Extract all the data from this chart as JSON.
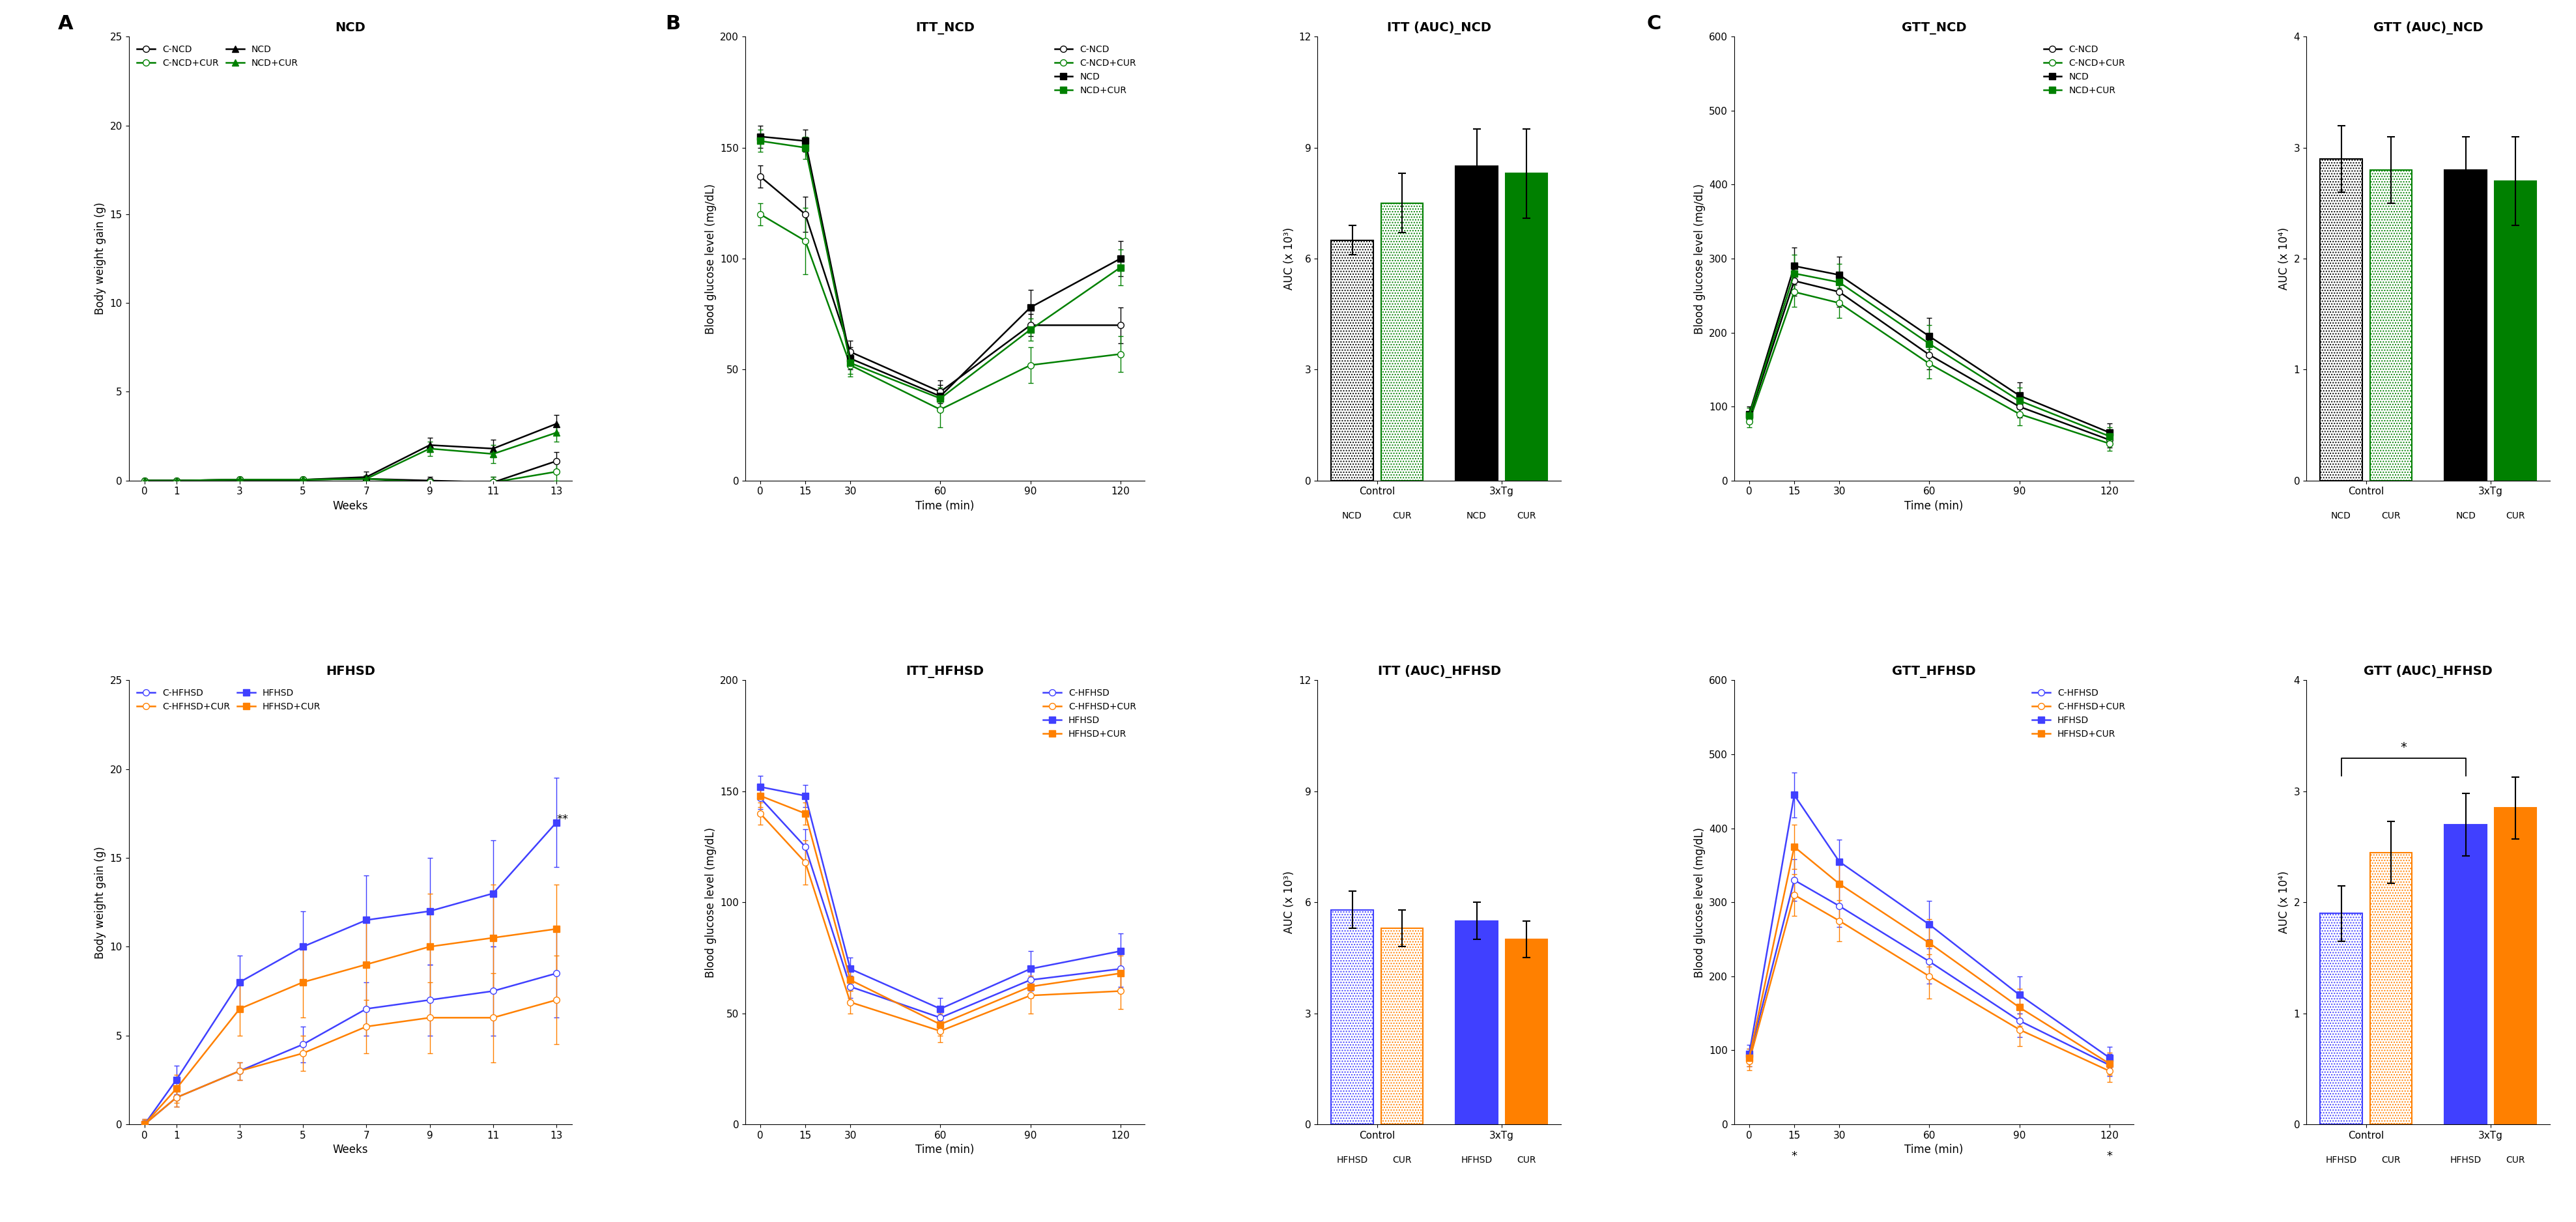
{
  "panel_A_NCD": {
    "title": "NCD",
    "xlabel": "Weeks",
    "ylabel": "Body weight gain (g)",
    "weeks": [
      0,
      1,
      3,
      5,
      7,
      9,
      11,
      13
    ],
    "ylim": [
      0,
      25
    ],
    "yticks": [
      0,
      5,
      10,
      15,
      20,
      25
    ],
    "series": {
      "C-NCD": {
        "y": [
          0.0,
          0.0,
          0.05,
          0.05,
          0.1,
          0.0,
          -0.1,
          1.1
        ],
        "err": [
          0.05,
          0.05,
          0.05,
          0.05,
          0.2,
          0.2,
          0.3,
          0.5
        ],
        "color": "#000000",
        "marker": "o",
        "fillstyle": "none"
      },
      "C-NCD+CUR": {
        "y": [
          0.0,
          0.0,
          0.05,
          0.05,
          0.1,
          -0.1,
          -0.1,
          0.5
        ],
        "err": [
          0.05,
          0.05,
          0.05,
          0.05,
          0.15,
          0.2,
          0.3,
          0.5
        ],
        "color": "#008000",
        "marker": "o",
        "fillstyle": "none"
      },
      "NCD": {
        "y": [
          0.0,
          0.0,
          0.05,
          0.05,
          0.2,
          2.0,
          1.8,
          3.2
        ],
        "err": [
          0.05,
          0.05,
          0.1,
          0.1,
          0.3,
          0.4,
          0.5,
          0.5
        ],
        "color": "#000000",
        "marker": "^",
        "fillstyle": "full"
      },
      "NCD+CUR": {
        "y": [
          0.0,
          0.0,
          0.05,
          0.05,
          0.1,
          1.8,
          1.5,
          2.7
        ],
        "err": [
          0.05,
          0.05,
          0.1,
          0.1,
          0.2,
          0.4,
          0.5,
          0.5
        ],
        "color": "#008000",
        "marker": "^",
        "fillstyle": "full"
      }
    }
  },
  "panel_A_HFHSD": {
    "title": "HFHSD",
    "xlabel": "Weeks",
    "ylabel": "Body weight gain (g)",
    "weeks": [
      0,
      1,
      3,
      5,
      7,
      9,
      11,
      13
    ],
    "ylim": [
      0,
      25
    ],
    "yticks": [
      0,
      5,
      10,
      15,
      20,
      25
    ],
    "series": {
      "C-HFHSD": {
        "y": [
          0.0,
          1.5,
          3.0,
          4.5,
          6.5,
          7.0,
          7.5,
          8.5
        ],
        "err": [
          0.2,
          0.5,
          0.5,
          1.0,
          1.5,
          2.0,
          2.5,
          2.5
        ],
        "color": "#4040FF",
        "marker": "o",
        "fillstyle": "none"
      },
      "C-HFHSD+CUR": {
        "y": [
          0.0,
          1.5,
          3.0,
          4.0,
          5.5,
          6.0,
          6.0,
          7.0
        ],
        "err": [
          0.2,
          0.5,
          0.5,
          1.0,
          1.5,
          2.0,
          2.5,
          2.5
        ],
        "color": "#FF8000",
        "marker": "o",
        "fillstyle": "none"
      },
      "HFHSD": {
        "y": [
          0.0,
          2.5,
          8.0,
          10.0,
          11.5,
          12.0,
          13.0,
          17.0
        ],
        "err": [
          0.3,
          0.8,
          1.5,
          2.0,
          2.5,
          3.0,
          3.0,
          2.5
        ],
        "color": "#4040FF",
        "marker": "s",
        "fillstyle": "full"
      },
      "HFHSD+CUR": {
        "y": [
          0.0,
          2.0,
          6.5,
          8.0,
          9.0,
          10.0,
          10.5,
          11.0
        ],
        "err": [
          0.3,
          0.8,
          1.5,
          2.0,
          2.5,
          3.0,
          3.0,
          2.5
        ],
        "color": "#FF8000",
        "marker": "s",
        "fillstyle": "full"
      }
    }
  },
  "panel_B_ITT_NCD": {
    "title": "ITT_NCD",
    "xlabel": "Time (min)",
    "ylabel": "Blood glucose level (mg/dL)",
    "time": [
      0,
      15,
      30,
      60,
      90,
      120
    ],
    "ylim": [
      0,
      200
    ],
    "yticks": [
      0,
      50,
      100,
      150,
      200
    ],
    "series": {
      "C-NCD": {
        "y": [
          137,
          120,
          58,
          40,
          70,
          70
        ],
        "err": [
          5,
          8,
          5,
          5,
          5,
          8
        ],
        "color": "#000000",
        "marker": "o",
        "fillstyle": "none"
      },
      "C-NCD+CUR": {
        "y": [
          120,
          108,
          52,
          32,
          52,
          57
        ],
        "err": [
          5,
          15,
          5,
          8,
          8,
          8
        ],
        "color": "#008000",
        "marker": "o",
        "fillstyle": "none"
      },
      "NCD": {
        "y": [
          155,
          153,
          55,
          38,
          78,
          100
        ],
        "err": [
          5,
          5,
          5,
          5,
          8,
          8
        ],
        "color": "#000000",
        "marker": "s",
        "fillstyle": "full"
      },
      "NCD+CUR": {
        "y": [
          153,
          150,
          53,
          37,
          68,
          96
        ],
        "err": [
          5,
          5,
          5,
          5,
          5,
          8
        ],
        "color": "#008000",
        "marker": "s",
        "fillstyle": "full"
      }
    }
  },
  "panel_B_ITT_AUC_NCD": {
    "title": "ITT (AUC)_NCD",
    "ylabel": "AUC (x 10³)",
    "ylim": [
      0,
      12
    ],
    "yticks": [
      0,
      3,
      6,
      9,
      12
    ],
    "bars": [
      {
        "label": "NCD",
        "group": "Control",
        "value": 6.5,
        "err": 0.4,
        "color": "#000000",
        "hatch": true
      },
      {
        "label": "CUR",
        "group": "Control",
        "value": 7.5,
        "err": 0.8,
        "color": "#008000",
        "hatch": true
      },
      {
        "label": "NCD",
        "group": "3xTg",
        "value": 8.5,
        "err": 1.0,
        "color": "#000000",
        "hatch": false
      },
      {
        "label": "CUR",
        "group": "3xTg",
        "value": 8.3,
        "err": 1.2,
        "color": "#008000",
        "hatch": false
      }
    ],
    "group_labels": [
      "Control",
      "3xTg"
    ]
  },
  "panel_B_ITT_HFHSD": {
    "title": "ITT_HFHSD",
    "xlabel": "Time (min)",
    "ylabel": "Blood glucose level (mg/dL)",
    "time": [
      0,
      15,
      30,
      60,
      90,
      120
    ],
    "ylim": [
      0,
      200
    ],
    "yticks": [
      0,
      50,
      100,
      150,
      200
    ],
    "series": {
      "C-HFHSD": {
        "y": [
          147,
          125,
          62,
          48,
          65,
          70
        ],
        "err": [
          5,
          8,
          5,
          5,
          5,
          8
        ],
        "color": "#4040FF",
        "marker": "o",
        "fillstyle": "none"
      },
      "C-HFHSD+CUR": {
        "y": [
          140,
          118,
          55,
          42,
          58,
          60
        ],
        "err": [
          5,
          10,
          5,
          5,
          8,
          8
        ],
        "color": "#FF8000",
        "marker": "o",
        "fillstyle": "none"
      },
      "HFHSD": {
        "y": [
          152,
          148,
          70,
          52,
          70,
          78
        ],
        "err": [
          5,
          5,
          5,
          5,
          8,
          8
        ],
        "color": "#4040FF",
        "marker": "s",
        "fillstyle": "full"
      },
      "HFHSD+CUR": {
        "y": [
          148,
          140,
          65,
          45,
          62,
          68
        ],
        "err": [
          5,
          5,
          5,
          5,
          5,
          8
        ],
        "color": "#FF8000",
        "marker": "s",
        "fillstyle": "full"
      }
    }
  },
  "panel_B_ITT_AUC_HFHSD": {
    "title": "ITT (AUC)_HFHSD",
    "ylabel": "AUC (x 10³)",
    "ylim": [
      0,
      12
    ],
    "yticks": [
      0,
      3,
      6,
      9,
      12
    ],
    "bars": [
      {
        "label": "HFHSD",
        "group": "Control",
        "value": 5.8,
        "err": 0.5,
        "color": "#4040FF",
        "hatch": true
      },
      {
        "label": "CUR",
        "group": "Control",
        "value": 5.3,
        "err": 0.5,
        "color": "#FF8000",
        "hatch": true
      },
      {
        "label": "HFHSD",
        "group": "3xTg",
        "value": 5.5,
        "err": 0.5,
        "color": "#4040FF",
        "hatch": false
      },
      {
        "label": "CUR",
        "group": "3xTg",
        "value": 5.0,
        "err": 0.5,
        "color": "#FF8000",
        "hatch": false
      }
    ],
    "group_labels": [
      "Control",
      "3xTg"
    ]
  },
  "panel_C_GTT_NCD": {
    "title": "GTT_NCD",
    "xlabel": "Time (min)",
    "ylabel": "Blood glucose level (mg/dL)",
    "time": [
      0,
      15,
      30,
      60,
      90,
      120
    ],
    "ylim": [
      0,
      600
    ],
    "yticks": [
      0,
      100,
      200,
      300,
      400,
      500,
      600
    ],
    "series": {
      "C-NCD": {
        "y": [
          85,
          270,
          255,
          170,
          100,
          55
        ],
        "err": [
          8,
          20,
          20,
          20,
          15,
          10
        ],
        "color": "#000000",
        "marker": "o",
        "fillstyle": "none"
      },
      "C-NCD+CUR": {
        "y": [
          80,
          255,
          240,
          158,
          90,
          50
        ],
        "err": [
          8,
          20,
          20,
          20,
          15,
          10
        ],
        "color": "#008000",
        "marker": "o",
        "fillstyle": "none"
      },
      "NCD": {
        "y": [
          90,
          290,
          278,
          195,
          115,
          65
        ],
        "err": [
          10,
          25,
          25,
          25,
          18,
          12
        ],
        "color": "#000000",
        "marker": "s",
        "fillstyle": "full"
      },
      "NCD+CUR": {
        "y": [
          88,
          280,
          268,
          185,
          108,
          60
        ],
        "err": [
          10,
          25,
          25,
          25,
          18,
          12
        ],
        "color": "#008000",
        "marker": "s",
        "fillstyle": "full"
      }
    }
  },
  "panel_C_GTT_AUC_NCD": {
    "title": "GTT (AUC)_NCD",
    "ylabel": "AUC (x 10⁴)",
    "ylim": [
      0,
      4
    ],
    "yticks": [
      0,
      1,
      2,
      3,
      4
    ],
    "bars": [
      {
        "label": "NCD",
        "group": "Control",
        "value": 2.9,
        "err": 0.3,
        "color": "#000000",
        "hatch": true
      },
      {
        "label": "CUR",
        "group": "Control",
        "value": 2.8,
        "err": 0.3,
        "color": "#008000",
        "hatch": true
      },
      {
        "label": "NCD",
        "group": "3xTg",
        "value": 2.8,
        "err": 0.3,
        "color": "#000000",
        "hatch": false
      },
      {
        "label": "CUR",
        "group": "3xTg",
        "value": 2.7,
        "err": 0.4,
        "color": "#008000",
        "hatch": false
      }
    ],
    "group_labels": [
      "Control",
      "3xTg"
    ]
  },
  "panel_C_GTT_HFHSD": {
    "title": "GTT_HFHSD",
    "xlabel": "Time (min)",
    "ylabel": "Blood glucose level (mg/dL)",
    "time": [
      0,
      15,
      30,
      60,
      90,
      120
    ],
    "ylim": [
      0,
      600
    ],
    "yticks": [
      0,
      100,
      200,
      300,
      400,
      500,
      600
    ],
    "star_at_time": [
      15,
      120
    ],
    "series": {
      "C-HFHSD": {
        "y": [
          90,
          330,
          295,
          220,
          140,
          80
        ],
        "err": [
          12,
          28,
          28,
          30,
          22,
          15
        ],
        "color": "#4040FF",
        "marker": "o",
        "fillstyle": "none"
      },
      "C-HFHSD+CUR": {
        "y": [
          85,
          310,
          275,
          200,
          128,
          72
        ],
        "err": [
          12,
          28,
          28,
          30,
          22,
          15
        ],
        "color": "#FF8000",
        "marker": "o",
        "fillstyle": "none"
      },
      "HFHSD": {
        "y": [
          95,
          445,
          355,
          270,
          175,
          90
        ],
        "err": [
          12,
          30,
          30,
          32,
          25,
          15
        ],
        "color": "#4040FF",
        "marker": "s",
        "fillstyle": "full"
      },
      "HFHSD+CUR": {
        "y": [
          90,
          375,
          325,
          245,
          158,
          82
        ],
        "err": [
          12,
          30,
          30,
          32,
          25,
          15
        ],
        "color": "#FF8000",
        "marker": "s",
        "fillstyle": "full"
      }
    }
  },
  "panel_C_GTT_AUC_HFHSD": {
    "title": "GTT (AUC)_HFHSD",
    "ylabel": "AUC (x 10⁴)",
    "ylim": [
      0,
      4
    ],
    "yticks": [
      0,
      1,
      2,
      3,
      4
    ],
    "has_star_bracket": true,
    "star_bracket_from": 0,
    "star_bracket_to": 2,
    "bars": [
      {
        "label": "HFHSD",
        "group": "Control",
        "value": 1.9,
        "err": 0.25,
        "color": "#4040FF",
        "hatch": true
      },
      {
        "label": "CUR",
        "group": "Control",
        "value": 2.45,
        "err": 0.28,
        "color": "#FF8000",
        "hatch": true
      },
      {
        "label": "HFHSD",
        "group": "3xTg",
        "value": 2.7,
        "err": 0.28,
        "color": "#4040FF",
        "hatch": false
      },
      {
        "label": "CUR",
        "group": "3xTg",
        "value": 2.85,
        "err": 0.28,
        "color": "#FF8000",
        "hatch": false
      }
    ],
    "group_labels": [
      "Control",
      "3xTg"
    ]
  },
  "label_fontsize": 12,
  "title_fontsize": 14,
  "tick_fontsize": 11,
  "legend_fontsize": 10
}
